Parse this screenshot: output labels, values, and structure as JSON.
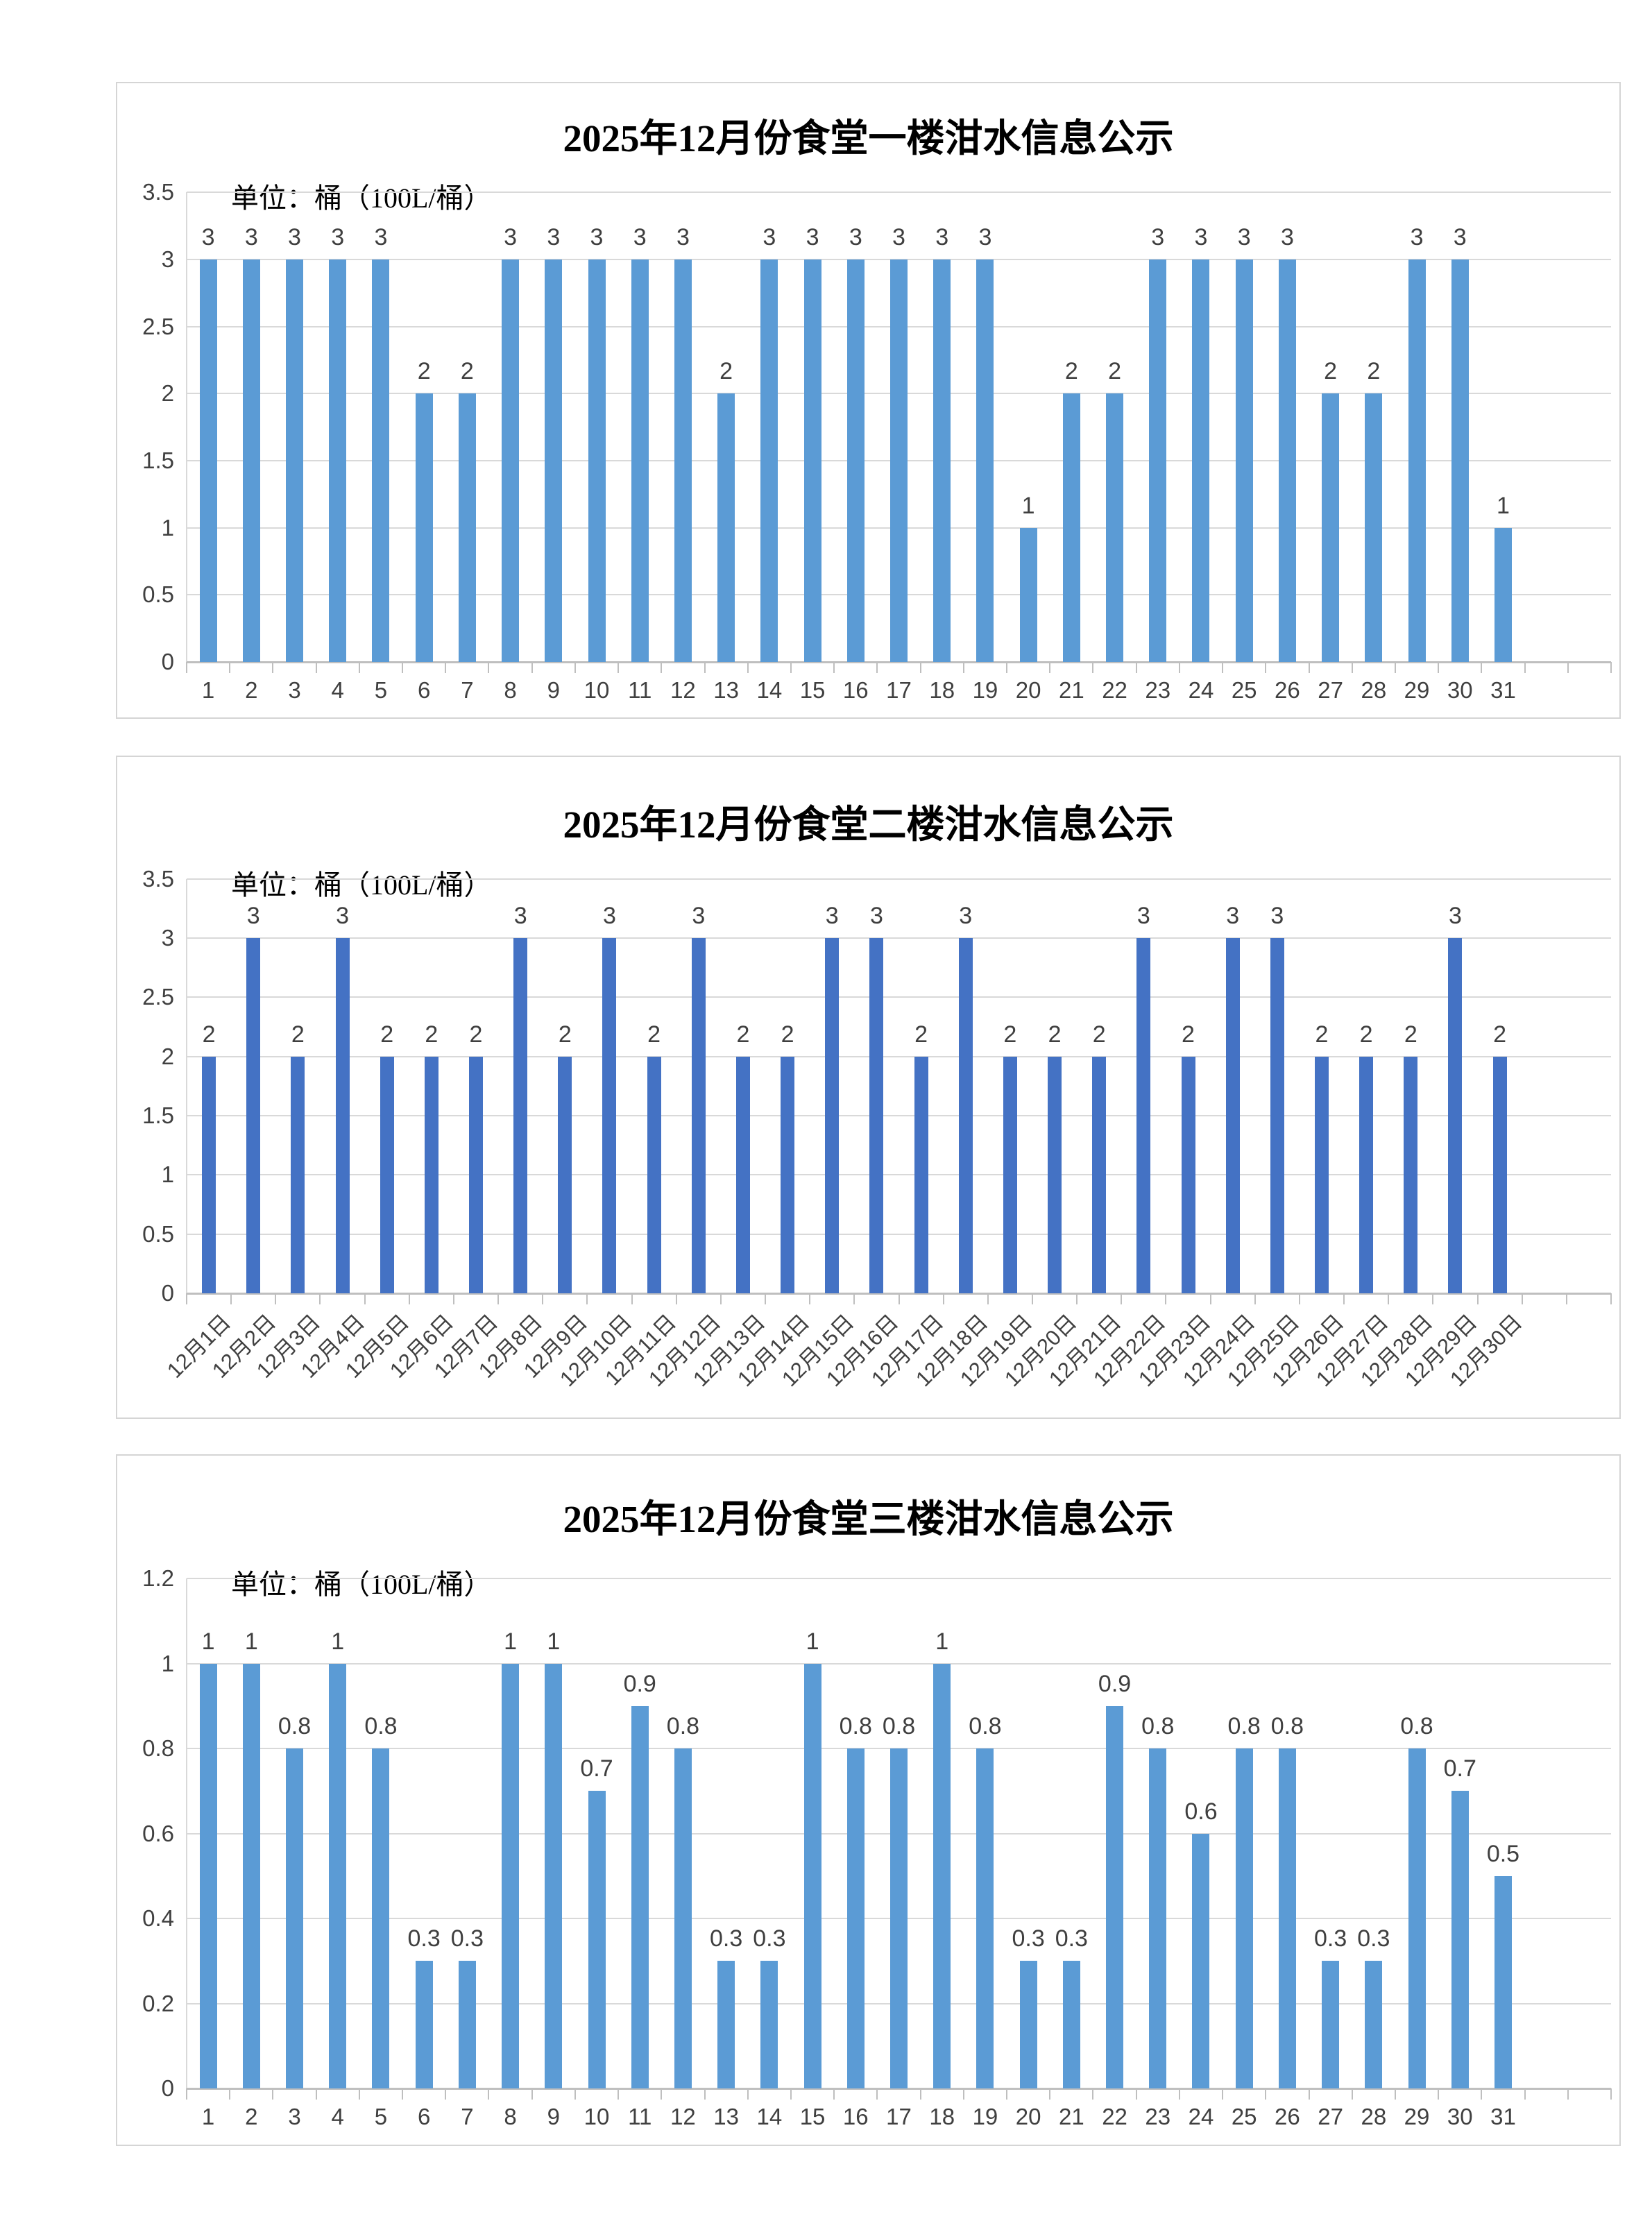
{
  "unit_note": "单位：桶（100L/桶）",
  "chart_data": [
    {
      "type": "bar",
      "title": "2025年12月份食堂一楼泔水信息公示",
      "unit_note": "单位：桶（100L/桶）",
      "categories": [
        "1",
        "2",
        "3",
        "4",
        "5",
        "6",
        "7",
        "8",
        "9",
        "10",
        "11",
        "12",
        "13",
        "14",
        "15",
        "16",
        "17",
        "18",
        "19",
        "20",
        "21",
        "22",
        "23",
        "24",
        "25",
        "26",
        "27",
        "28",
        "29",
        "30",
        "31"
      ],
      "values": [
        3,
        3,
        3,
        3,
        3,
        2,
        2,
        3,
        3,
        3,
        3,
        3,
        2,
        3,
        3,
        3,
        3,
        3,
        3,
        1,
        2,
        2,
        3,
        3,
        3,
        3,
        2,
        2,
        3,
        3,
        1
      ],
      "y_ticks": [
        0,
        0.5,
        1,
        1.5,
        2,
        2.5,
        3,
        3.5
      ],
      "ylim": [
        0,
        3.5
      ],
      "bar_color": "#5B9BD5",
      "grid": true,
      "legend": "none",
      "x_label_rotation": 0,
      "data_labels_shown": true
    },
    {
      "type": "bar",
      "title": "2025年12月份食堂二楼泔水信息公示",
      "unit_note": "单位：桶（100L/桶）",
      "categories": [
        "12月1日",
        "12月2日",
        "12月3日",
        "12月4日",
        "12月5日",
        "12月6日",
        "12月7日",
        "12月8日",
        "12月9日",
        "12月10日",
        "12月11日",
        "12月12日",
        "12月13日",
        "12月14日",
        "12月15日",
        "12月16日",
        "12月17日",
        "12月18日",
        "12月19日",
        "12月20日",
        "12月21日",
        "12月22日",
        "12月23日",
        "12月24日",
        "12月25日",
        "12月26日",
        "12月27日",
        "12月28日",
        "12月29日",
        "12月30日"
      ],
      "values": [
        2,
        3,
        2,
        3,
        2,
        2,
        2,
        3,
        2,
        3,
        2,
        3,
        2,
        2,
        3,
        3,
        2,
        3,
        2,
        2,
        2,
        3,
        2,
        3,
        3,
        2,
        2,
        2,
        3,
        2
      ],
      "y_ticks": [
        0,
        0.5,
        1,
        1.5,
        2,
        2.5,
        3,
        3.5
      ],
      "ylim": [
        0,
        3.5
      ],
      "bar_color": "#4472C4",
      "grid": true,
      "legend": "none",
      "x_label_rotation": 45,
      "data_labels_shown": true
    },
    {
      "type": "bar",
      "title": "2025年12月份食堂三楼泔水信息公示",
      "unit_note": "单位：桶（100L/桶）",
      "categories": [
        "1",
        "2",
        "3",
        "4",
        "5",
        "6",
        "7",
        "8",
        "9",
        "10",
        "11",
        "12",
        "13",
        "14",
        "15",
        "16",
        "17",
        "18",
        "19",
        "20",
        "21",
        "22",
        "23",
        "24",
        "25",
        "26",
        "27",
        "28",
        "29",
        "30",
        "31"
      ],
      "values": [
        1,
        1,
        0.8,
        1,
        0.8,
        0.3,
        0.3,
        1,
        1,
        0.7,
        0.9,
        0.8,
        0.3,
        0.3,
        1,
        0.8,
        0.8,
        1,
        0.8,
        0.3,
        0.3,
        0.9,
        0.8,
        0.6,
        0.8,
        0.8,
        0.3,
        0.3,
        0.8,
        0.7,
        0.5
      ],
      "y_ticks": [
        0,
        0.2,
        0.4,
        0.6,
        0.8,
        1,
        1.2
      ],
      "ylim": [
        0,
        1.2
      ],
      "bar_color": "#5B9BD5",
      "grid": true,
      "legend": "none",
      "x_label_rotation": 0,
      "data_labels_shown": true
    }
  ]
}
